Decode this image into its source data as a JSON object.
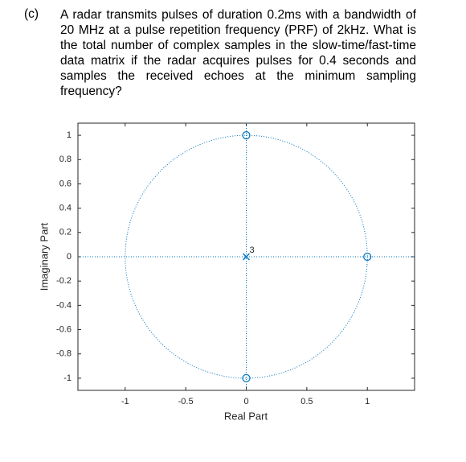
{
  "label": "(c)",
  "question": "A radar transmits pulses of duration 0.2ms with a bandwidth of 20 MHz at a pulse repetition frequency (PRF) of 2kHz. What is the total number of complex samples in the slow-time/fast-time data matrix if the radar acquires pulses for 0.4 seconds and samples the received echoes at the minimum sampling frequency?",
  "chart_data": {
    "type": "pole-zero",
    "xlabel": "Real Part",
    "ylabel": "Imaginary Part",
    "xlim": [
      -1.39,
      1.39
    ],
    "ylim": [
      -1.1,
      1.1
    ],
    "xticks": [
      -1,
      -0.5,
      0,
      0.5,
      1
    ],
    "yticks": [
      1,
      0.8,
      0.6,
      0.4,
      0.2,
      0,
      -0.2,
      -0.4,
      -0.6,
      -0.8,
      -1
    ],
    "zeros": {
      "x": [
        0,
        0,
        1
      ],
      "y": [
        1,
        -1,
        0
      ]
    },
    "poles": {
      "x": [
        0
      ],
      "y": [
        0
      ],
      "multiplicity": [
        3
      ]
    },
    "color": "#0072bd",
    "unit_circle": true
  }
}
